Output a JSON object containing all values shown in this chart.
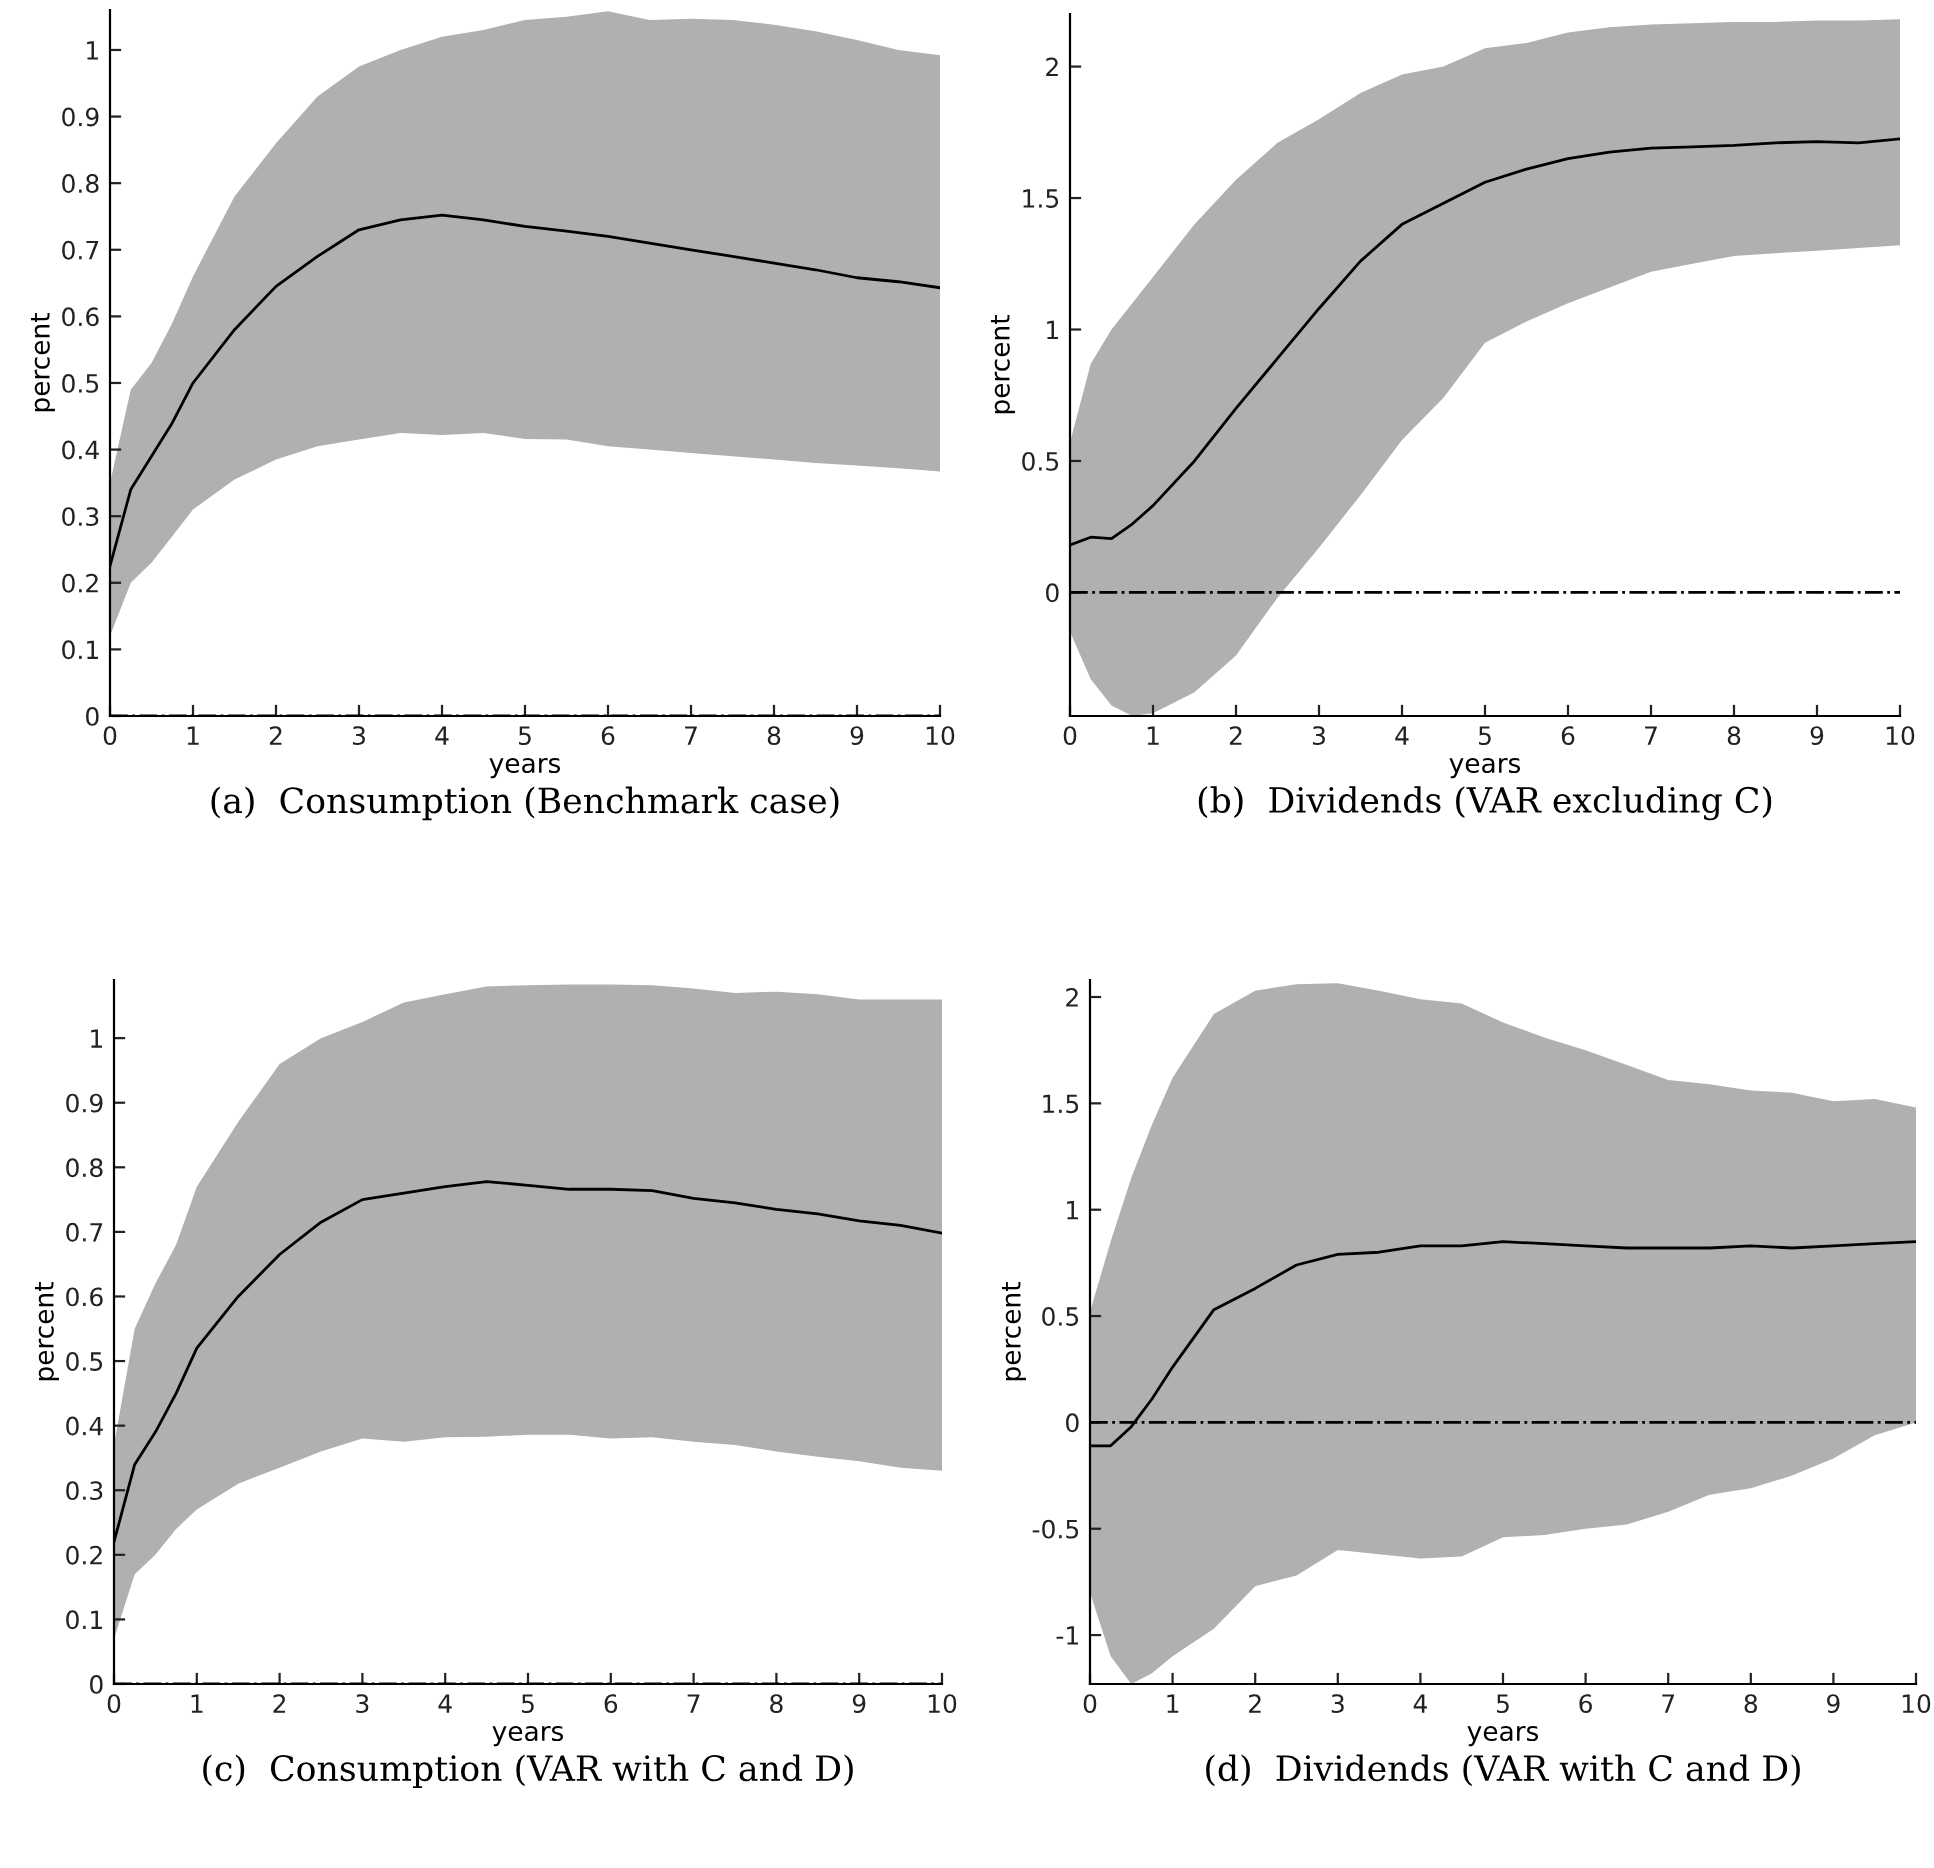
{
  "chart_data": [
    {
      "type": "line",
      "title": "(a)  Consumption (Benchmark case)",
      "xlabel": "years",
      "ylabel": "percent",
      "x": [
        0,
        0.25,
        0.5,
        0.75,
        1,
        1.5,
        2,
        2.5,
        3,
        3.5,
        4,
        4.5,
        5,
        5.5,
        6,
        6.5,
        7,
        7.5,
        8,
        8.5,
        9,
        9.5,
        10
      ],
      "series": [
        {
          "color": "#000000",
          "values": [
            0.225,
            0.34,
            0.39,
            0.44,
            0.5,
            0.58,
            0.645,
            0.69,
            0.73,
            0.745,
            0.752,
            0.745,
            0.735,
            0.728,
            0.72,
            0.71,
            0.7,
            0.69,
            0.68,
            0.67,
            0.658,
            0.652,
            0.643
          ],
          "upper": [
            0.35,
            0.49,
            0.53,
            0.59,
            0.66,
            0.78,
            0.86,
            0.93,
            0.975,
            1.0,
            1.02,
            1.03,
            1.045,
            1.05,
            1.058,
            1.045,
            1.047,
            1.045,
            1.038,
            1.028,
            1.015,
            1.0,
            0.992
          ],
          "lower": [
            0.12,
            0.2,
            0.23,
            0.27,
            0.31,
            0.355,
            0.385,
            0.405,
            0.415,
            0.425,
            0.422,
            0.425,
            0.416,
            0.415,
            0.405,
            0.4,
            0.395,
            0.39,
            0.385,
            0.38,
            0.376,
            0.372,
            0.367
          ]
        }
      ],
      "xlim": [
        0,
        10
      ],
      "xticks": [
        0,
        1,
        2,
        3,
        4,
        5,
        6,
        7,
        8,
        9,
        10
      ],
      "ylim": [
        0,
        1.06
      ],
      "yticks": [
        0,
        0.1,
        0.2,
        0.3,
        0.4,
        0.5,
        0.6,
        0.7,
        0.8,
        0.9,
        1
      ],
      "ref_lines": [
        {
          "axis": "y",
          "value": 0,
          "color": "#000000",
          "line_style": "dashdot"
        }
      ],
      "grid": false,
      "legend": false
    },
    {
      "type": "line",
      "title": "(b)  Dividends (VAR excluding C)",
      "xlabel": "years",
      "ylabel": "percent",
      "x": [
        0,
        0.25,
        0.5,
        0.75,
        1,
        1.5,
        2,
        2.5,
        3,
        3.5,
        4,
        4.5,
        5,
        5.5,
        6,
        6.5,
        7,
        7.5,
        8,
        8.5,
        9,
        9.5,
        10
      ],
      "series": [
        {
          "color": "#000000",
          "values": [
            0.18,
            0.21,
            0.205,
            0.26,
            0.33,
            0.5,
            0.7,
            0.89,
            1.08,
            1.26,
            1.4,
            1.48,
            1.56,
            1.61,
            1.65,
            1.675,
            1.69,
            1.695,
            1.7,
            1.71,
            1.715,
            1.71,
            1.725
          ],
          "upper": [
            0.57,
            0.87,
            1.0,
            1.1,
            1.2,
            1.4,
            1.57,
            1.71,
            1.8,
            1.9,
            1.97,
            2.0,
            2.07,
            2.09,
            2.13,
            2.15,
            2.16,
            2.165,
            2.17,
            2.17,
            2.175,
            2.175,
            2.18
          ],
          "lower": [
            -0.15,
            -0.33,
            -0.43,
            -0.47,
            -0.46,
            -0.38,
            -0.24,
            -0.02,
            0.17,
            0.37,
            0.58,
            0.74,
            0.95,
            1.03,
            1.1,
            1.16,
            1.22,
            1.25,
            1.28,
            1.29,
            1.3,
            1.31,
            1.32
          ]
        }
      ],
      "xlim": [
        0,
        10
      ],
      "xticks": [
        0,
        1,
        2,
        3,
        4,
        5,
        6,
        7,
        8,
        9,
        10
      ],
      "ylim": [
        -0.47,
        2.2
      ],
      "yticks": [
        0,
        0.5,
        1,
        1.5,
        2
      ],
      "ref_lines": [
        {
          "axis": "y",
          "value": 0,
          "color": "#000000",
          "line_style": "dashdot"
        }
      ],
      "grid": false,
      "legend": false
    },
    {
      "type": "line",
      "title": "(c)  Consumption (VAR with C and D)",
      "xlabel": "years",
      "ylabel": "percent",
      "x": [
        0,
        0.25,
        0.5,
        0.75,
        1,
        1.5,
        2,
        2.5,
        3,
        3.5,
        4,
        4.5,
        5,
        5.5,
        6,
        6.5,
        7,
        7.5,
        8,
        8.5,
        9,
        9.5,
        10
      ],
      "series": [
        {
          "color": "#000000",
          "values": [
            0.22,
            0.34,
            0.39,
            0.45,
            0.52,
            0.6,
            0.665,
            0.715,
            0.75,
            0.76,
            0.77,
            0.778,
            0.772,
            0.766,
            0.766,
            0.764,
            0.752,
            0.745,
            0.735,
            0.728,
            0.717,
            0.71,
            0.698
          ],
          "upper": [
            0.37,
            0.55,
            0.62,
            0.68,
            0.77,
            0.87,
            0.96,
            1.0,
            1.025,
            1.055,
            1.068,
            1.08,
            1.082,
            1.083,
            1.083,
            1.082,
            1.077,
            1.07,
            1.072,
            1.068,
            1.06,
            1.06,
            1.06
          ],
          "lower": [
            0.07,
            0.17,
            0.2,
            0.24,
            0.27,
            0.31,
            0.335,
            0.36,
            0.38,
            0.375,
            0.382,
            0.383,
            0.386,
            0.386,
            0.38,
            0.382,
            0.375,
            0.37,
            0.36,
            0.352,
            0.345,
            0.335,
            0.33
          ]
        }
      ],
      "xlim": [
        0,
        10
      ],
      "xticks": [
        0,
        1,
        2,
        3,
        4,
        5,
        6,
        7,
        8,
        9,
        10
      ],
      "ylim": [
        0,
        1.09
      ],
      "yticks": [
        0,
        0.1,
        0.2,
        0.3,
        0.4,
        0.5,
        0.6,
        0.7,
        0.8,
        0.9,
        1
      ],
      "ref_lines": [
        {
          "axis": "y",
          "value": 0,
          "color": "#000000",
          "line_style": "dashdot"
        }
      ],
      "grid": false,
      "legend": false
    },
    {
      "type": "line",
      "title": "(d)  Dividends (VAR with C and D)",
      "xlabel": "years",
      "ylabel": "percent",
      "x": [
        0,
        0.25,
        0.5,
        0.75,
        1,
        1.5,
        2,
        2.5,
        3,
        3.5,
        4,
        4.5,
        5,
        5.5,
        6,
        6.5,
        7,
        7.5,
        8,
        8.5,
        9,
        9.5,
        10
      ],
      "series": [
        {
          "color": "#000000",
          "values": [
            -0.11,
            -0.11,
            -0.02,
            0.11,
            0.26,
            0.53,
            0.63,
            0.74,
            0.79,
            0.8,
            0.83,
            0.83,
            0.85,
            0.84,
            0.83,
            0.82,
            0.82,
            0.82,
            0.83,
            0.82,
            0.83,
            0.84,
            0.85
          ],
          "upper": [
            0.52,
            0.85,
            1.15,
            1.4,
            1.62,
            1.92,
            2.03,
            2.06,
            2.065,
            2.03,
            1.99,
            1.97,
            1.88,
            1.81,
            1.75,
            1.68,
            1.61,
            1.59,
            1.56,
            1.55,
            1.51,
            1.52,
            1.48
          ],
          "lower": [
            -0.8,
            -1.1,
            -1.23,
            -1.18,
            -1.1,
            -0.97,
            -0.77,
            -0.72,
            -0.6,
            -0.62,
            -0.64,
            -0.63,
            -0.54,
            -0.53,
            -0.5,
            -0.48,
            -0.42,
            -0.34,
            -0.31,
            -0.25,
            -0.17,
            -0.06,
            0.0
          ]
        }
      ],
      "xlim": [
        0,
        10
      ],
      "xticks": [
        0,
        1,
        2,
        3,
        4,
        5,
        6,
        7,
        8,
        9,
        10
      ],
      "ylim": [
        -1.23,
        2.08
      ],
      "yticks": [
        -1,
        -0.5,
        0,
        0.5,
        1,
        1.5,
        2
      ],
      "ref_lines": [
        {
          "axis": "y",
          "value": 0,
          "color": "#000000",
          "line_style": "dashdot"
        }
      ],
      "grid": false,
      "legend": false
    }
  ]
}
